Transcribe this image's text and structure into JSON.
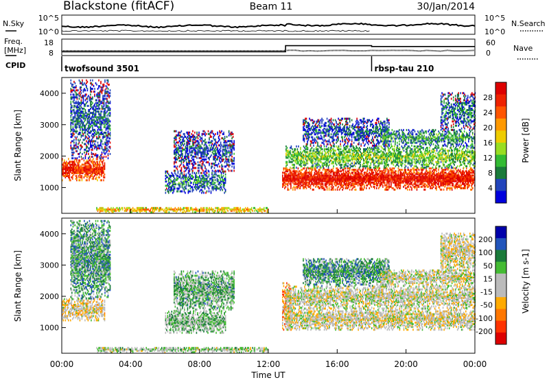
{
  "header": {
    "title": "Blackstone (fitACF)",
    "beam": "Beam 11",
    "date": "30/Jan/2014"
  },
  "noise_panel": {
    "left_label": "N.Sky",
    "right_label": "N.Search",
    "ticks": [
      "10^5",
      "10^0"
    ]
  },
  "freq_panel": {
    "left_label_1": "Freq.",
    "left_label_2": "[MHz]",
    "left_ticks": [
      "18",
      "8"
    ],
    "right_label": "Nave",
    "right_ticks": [
      "60",
      "0"
    ],
    "cpid_label": "CPID",
    "cpid_events": [
      {
        "time_h": 0.0,
        "name": "twofsound 3501"
      },
      {
        "time_h": 18.0,
        "name": "rbsp-tau 210"
      }
    ],
    "freq_segments_mhz": [
      {
        "start_h": 0.0,
        "end_h": 13.0,
        "freq": 10.5
      },
      {
        "start_h": 13.0,
        "end_h": 18.0,
        "freq": 14.5
      },
      {
        "start_h": 18.0,
        "end_h": 24.0,
        "freq": 14.0
      }
    ]
  },
  "colors": {
    "power_scale": [
      "#0000dd",
      "#2244bb",
      "#1a7a3a",
      "#33bb33",
      "#99dd22",
      "#eecc00",
      "#ff9900",
      "#ff5500",
      "#ee2200",
      "#dd0000"
    ],
    "velocity_scale": [
      "#0000aa",
      "#2255bb",
      "#1a7a3a",
      "#44bb33",
      "#bbbbbb",
      "#bbbbbb",
      "#ffaa00",
      "#ff7700",
      "#ff3300",
      "#dd0000"
    ]
  },
  "chart_data": [
    {
      "type": "heatmap",
      "name": "power",
      "ylabel": "Slant Range [km]",
      "xlabel": "Time UT",
      "xlim_hours": [
        0,
        24
      ],
      "ylim_km": [
        180,
        4500
      ],
      "x_ticks": [
        "00:00",
        "04:00",
        "08:00",
        "12:00",
        "16:00",
        "20:00",
        "00:00"
      ],
      "y_ticks": [
        1000,
        2000,
        3000,
        4000
      ],
      "colorbar_label": "Power [dB]",
      "colorbar_ticks": [
        "28",
        "24",
        "20",
        "16",
        "12",
        "8",
        "4"
      ],
      "bands": [
        {
          "start_h": 0.0,
          "end_h": 2.5,
          "range_lo_km": 1200,
          "range_hi_km": 1900,
          "level": 0.8
        },
        {
          "start_h": 0.5,
          "end_h": 2.8,
          "range_lo_km": 1900,
          "range_hi_km": 4400,
          "level": 0.12
        },
        {
          "start_h": 6.0,
          "end_h": 9.5,
          "range_lo_km": 800,
          "range_hi_km": 1500,
          "level": 0.18
        },
        {
          "start_h": 6.5,
          "end_h": 10.0,
          "range_lo_km": 1500,
          "range_hi_km": 2800,
          "level": 0.1
        },
        {
          "start_h": 2.0,
          "end_h": 12.0,
          "range_lo_km": 180,
          "range_hi_km": 350,
          "level": 0.55
        },
        {
          "start_h": 12.8,
          "end_h": 24.0,
          "range_lo_km": 900,
          "range_hi_km": 1600,
          "level": 0.85
        },
        {
          "start_h": 13.0,
          "end_h": 24.0,
          "range_lo_km": 1600,
          "range_hi_km": 2300,
          "level": 0.35
        },
        {
          "start_h": 14.0,
          "end_h": 19.0,
          "range_lo_km": 2300,
          "range_hi_km": 3200,
          "level": 0.12
        },
        {
          "start_h": 18.5,
          "end_h": 24.0,
          "range_lo_km": 2300,
          "range_hi_km": 2800,
          "level": 0.25
        },
        {
          "start_h": 22.0,
          "end_h": 24.0,
          "range_lo_km": 2800,
          "range_hi_km": 4000,
          "level": 0.15
        }
      ]
    },
    {
      "type": "heatmap",
      "name": "velocity",
      "ylabel": "Slant Range [km]",
      "xlabel": "Time UT",
      "xlim_hours": [
        0,
        24
      ],
      "ylim_km": [
        180,
        4500
      ],
      "x_ticks": [
        "00:00",
        "04:00",
        "08:00",
        "12:00",
        "16:00",
        "20:00",
        "00:00"
      ],
      "y_ticks": [
        1000,
        2000,
        3000,
        4000
      ],
      "colorbar_label": "Velocity [m s-1]",
      "colorbar_ticks": [
        "200",
        "100",
        "50",
        "15",
        "-15",
        "-50",
        "-100",
        "-200"
      ],
      "bands": [
        {
          "start_h": 0.0,
          "end_h": 2.5,
          "range_lo_km": 1200,
          "range_hi_km": 1900,
          "level": 0.45
        },
        {
          "start_h": 0.5,
          "end_h": 2.8,
          "range_lo_km": 1900,
          "range_hi_km": 4400,
          "level": 0.7
        },
        {
          "start_h": 6.0,
          "end_h": 9.5,
          "range_lo_km": 800,
          "range_hi_km": 1500,
          "level": 0.62
        },
        {
          "start_h": 6.5,
          "end_h": 10.0,
          "range_lo_km": 1500,
          "range_hi_km": 2800,
          "level": 0.65
        },
        {
          "start_h": 2.0,
          "end_h": 12.0,
          "range_lo_km": 180,
          "range_hi_km": 350,
          "level": 0.55
        },
        {
          "start_h": 12.8,
          "end_h": 13.3,
          "range_lo_km": 900,
          "range_hi_km": 2400,
          "level": 0.3
        },
        {
          "start_h": 13.0,
          "end_h": 24.0,
          "range_lo_km": 900,
          "range_hi_km": 1600,
          "level": 0.48
        },
        {
          "start_h": 13.0,
          "end_h": 24.0,
          "range_lo_km": 1600,
          "range_hi_km": 2300,
          "level": 0.5
        },
        {
          "start_h": 14.0,
          "end_h": 19.0,
          "range_lo_km": 2300,
          "range_hi_km": 3200,
          "level": 0.7
        },
        {
          "start_h": 18.5,
          "end_h": 24.0,
          "range_lo_km": 2300,
          "range_hi_km": 2800,
          "level": 0.5
        },
        {
          "start_h": 22.0,
          "end_h": 24.0,
          "range_lo_km": 2800,
          "range_hi_km": 4000,
          "level": 0.48
        }
      ]
    }
  ]
}
